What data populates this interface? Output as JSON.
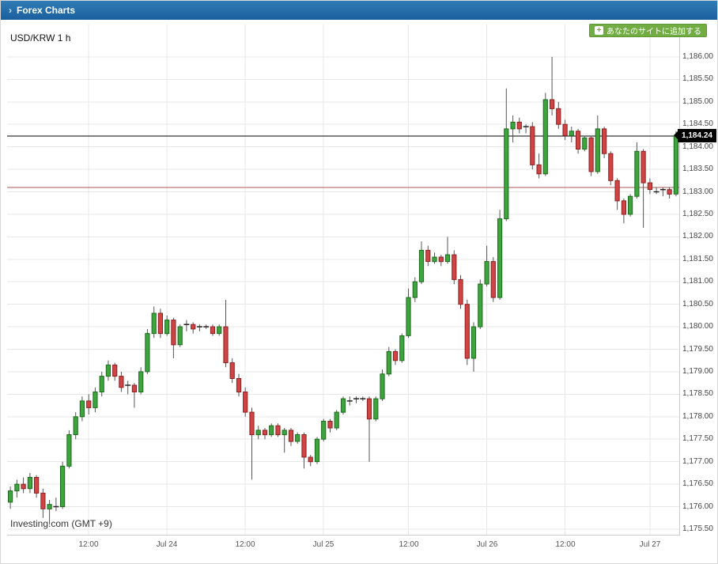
{
  "header": {
    "chevron": "›",
    "title": "Forex Charts"
  },
  "add_button": {
    "plus": "+",
    "label": "あなたのサイトに追加する",
    "bg": "#72ad44"
  },
  "chart": {
    "symbol_label": "USD/KRW 1 h",
    "watermark": "Investing.com (GMT +9)",
    "last_price_label": "1,184.24"
  },
  "chart_data": {
    "type": "candlestick",
    "title": "USD/KRW 1 h",
    "pair": "USD/KRW",
    "timeframe": "1h",
    "timezone": "GMT +9",
    "ylim": [
      1175.5,
      1186.0
    ],
    "grid": true,
    "last_price": 1184.24,
    "reference_line": 1183.1,
    "colors": {
      "up": "#3ea43e",
      "up_border": "#1c6b1c",
      "down": "#cf4444",
      "down_border": "#8e2020",
      "grid": "#e7e7e7",
      "wick": "#555555",
      "last_price_line": "#000000",
      "reference_line_color": "#aa5555",
      "accent_header": "#1a5f9e",
      "accent_button": "#72ad44"
    },
    "y_ticks": [
      "1,186.00",
      "1,185.50",
      "1,185.00",
      "1,184.50",
      "1,184.00",
      "1,183.50",
      "1,183.00",
      "1,182.50",
      "1,182.00",
      "1,181.50",
      "1,181.00",
      "1,180.50",
      "1,180.00",
      "1,179.50",
      "1,179.00",
      "1,178.50",
      "1,178.00",
      "1,177.50",
      "1,177.00",
      "1,176.50",
      "1,176.00",
      "1,175.50"
    ],
    "x_ticks": [
      {
        "index": 12,
        "label": "12:00"
      },
      {
        "index": 24,
        "label": "Jul 24"
      },
      {
        "index": 36,
        "label": "12:00"
      },
      {
        "index": 48,
        "label": "Jul 25"
      },
      {
        "index": 61,
        "label": "12:00"
      },
      {
        "index": 73,
        "label": "Jul 26"
      },
      {
        "index": 85,
        "label": "12:00"
      },
      {
        "index": 98,
        "label": "Jul 27"
      }
    ],
    "candles": [
      [
        1176.1,
        1176.45,
        1175.95,
        1176.35
      ],
      [
        1176.35,
        1176.6,
        1176.2,
        1176.5
      ],
      [
        1176.5,
        1176.65,
        1176.3,
        1176.4
      ],
      [
        1176.4,
        1176.75,
        1176.3,
        1176.65
      ],
      [
        1176.65,
        1176.7,
        1176.2,
        1176.3
      ],
      [
        1176.3,
        1176.4,
        1175.75,
        1175.95
      ],
      [
        1175.95,
        1176.15,
        1175.6,
        1176.05
      ],
      [
        1176.05,
        1176.2,
        1175.9,
        1176.0
      ],
      [
        1176.0,
        1177.0,
        1175.95,
        1176.9
      ],
      [
        1176.9,
        1177.7,
        1176.85,
        1177.6
      ],
      [
        1177.6,
        1178.1,
        1177.5,
        1178.0
      ],
      [
        1178.0,
        1178.45,
        1177.9,
        1178.35
      ],
      [
        1178.35,
        1178.5,
        1178.05,
        1178.2
      ],
      [
        1178.2,
        1178.65,
        1178.1,
        1178.55
      ],
      [
        1178.55,
        1179.0,
        1178.45,
        1178.9
      ],
      [
        1178.9,
        1179.25,
        1178.8,
        1179.15
      ],
      [
        1179.15,
        1179.2,
        1178.8,
        1178.9
      ],
      [
        1178.9,
        1179.0,
        1178.55,
        1178.65
      ],
      [
        1178.65,
        1178.8,
        1178.5,
        1178.7
      ],
      [
        1178.7,
        1178.75,
        1178.2,
        1178.55
      ],
      [
        1178.55,
        1179.1,
        1178.5,
        1179.0
      ],
      [
        1179.0,
        1179.95,
        1178.95,
        1179.85
      ],
      [
        1179.85,
        1180.45,
        1179.75,
        1180.3
      ],
      [
        1180.3,
        1180.4,
        1179.75,
        1179.85
      ],
      [
        1179.85,
        1180.25,
        1179.8,
        1180.15
      ],
      [
        1180.15,
        1180.2,
        1179.3,
        1179.6
      ],
      [
        1179.6,
        1180.05,
        1179.55,
        1180.0
      ],
      [
        1180.0,
        1180.15,
        1179.9,
        1180.05
      ],
      [
        1180.05,
        1180.1,
        1179.85,
        1179.95
      ],
      [
        1179.95,
        1180.05,
        1179.9,
        1180.0
      ],
      [
        1180.0,
        1180.05,
        1179.95,
        1180.0
      ],
      [
        1180.0,
        1180.05,
        1179.8,
        1179.85
      ],
      [
        1179.85,
        1180.05,
        1179.8,
        1180.0
      ],
      [
        1180.0,
        1180.6,
        1179.1,
        1179.2
      ],
      [
        1179.2,
        1179.3,
        1178.75,
        1178.85
      ],
      [
        1178.85,
        1178.95,
        1178.45,
        1178.55
      ],
      [
        1178.55,
        1178.65,
        1178.0,
        1178.1
      ],
      [
        1178.1,
        1178.2,
        1176.6,
        1177.6
      ],
      [
        1177.6,
        1177.8,
        1177.5,
        1177.7
      ],
      [
        1177.7,
        1177.75,
        1177.5,
        1177.6
      ],
      [
        1177.6,
        1177.85,
        1177.55,
        1177.8
      ],
      [
        1177.8,
        1177.85,
        1177.55,
        1177.6
      ],
      [
        1177.6,
        1177.75,
        1177.2,
        1177.7
      ],
      [
        1177.7,
        1177.75,
        1177.35,
        1177.45
      ],
      [
        1177.45,
        1177.65,
        1177.4,
        1177.6
      ],
      [
        1177.6,
        1177.65,
        1176.85,
        1177.1
      ],
      [
        1177.1,
        1177.15,
        1176.9,
        1177.0
      ],
      [
        1177.0,
        1177.55,
        1176.95,
        1177.5
      ],
      [
        1177.5,
        1177.95,
        1177.45,
        1177.9
      ],
      [
        1177.9,
        1177.95,
        1177.65,
        1177.75
      ],
      [
        1177.75,
        1178.15,
        1177.7,
        1178.1
      ],
      [
        1178.1,
        1178.45,
        1178.05,
        1178.4
      ],
      [
        1178.4,
        1178.45,
        1178.25,
        1178.35
      ],
      [
        1178.35,
        1178.45,
        1178.3,
        1178.4
      ],
      [
        1178.4,
        1178.45,
        1178.35,
        1178.4
      ],
      [
        1178.4,
        1178.45,
        1177.0,
        1177.95
      ],
      [
        1177.95,
        1178.45,
        1177.9,
        1178.4
      ],
      [
        1178.4,
        1179.05,
        1178.35,
        1178.95
      ],
      [
        1178.95,
        1179.55,
        1178.9,
        1179.45
      ],
      [
        1179.45,
        1179.5,
        1179.15,
        1179.25
      ],
      [
        1179.25,
        1179.85,
        1179.2,
        1179.8
      ],
      [
        1179.8,
        1180.85,
        1179.75,
        1180.65
      ],
      [
        1180.65,
        1181.1,
        1180.55,
        1181.0
      ],
      [
        1181.0,
        1181.9,
        1180.95,
        1181.7
      ],
      [
        1181.7,
        1181.8,
        1181.35,
        1181.45
      ],
      [
        1181.45,
        1181.65,
        1181.4,
        1181.55
      ],
      [
        1181.55,
        1181.6,
        1181.35,
        1181.45
      ],
      [
        1181.45,
        1182.0,
        1181.4,
        1181.6
      ],
      [
        1181.6,
        1181.7,
        1180.95,
        1181.05
      ],
      [
        1181.05,
        1181.15,
        1180.4,
        1180.5
      ],
      [
        1180.5,
        1180.6,
        1179.15,
        1179.3
      ],
      [
        1179.3,
        1180.1,
        1179.0,
        1180.0
      ],
      [
        1180.0,
        1181.05,
        1179.95,
        1180.95
      ],
      [
        1180.95,
        1181.8,
        1180.9,
        1181.45
      ],
      [
        1181.45,
        1181.55,
        1180.55,
        1180.65
      ],
      [
        1180.65,
        1182.6,
        1180.6,
        1182.4
      ],
      [
        1182.4,
        1185.3,
        1182.35,
        1184.4
      ],
      [
        1184.4,
        1184.7,
        1184.1,
        1184.55
      ],
      [
        1184.55,
        1184.65,
        1184.3,
        1184.4
      ],
      [
        1184.4,
        1184.5,
        1184.3,
        1184.45
      ],
      [
        1184.45,
        1184.55,
        1183.5,
        1183.6
      ],
      [
        1183.6,
        1183.85,
        1183.3,
        1183.4
      ],
      [
        1183.4,
        1185.2,
        1183.35,
        1185.05
      ],
      [
        1185.05,
        1186.0,
        1184.7,
        1184.85
      ],
      [
        1184.85,
        1185.0,
        1184.4,
        1184.5
      ],
      [
        1184.5,
        1184.6,
        1184.15,
        1184.25
      ],
      [
        1184.25,
        1184.45,
        1184.1,
        1184.35
      ],
      [
        1184.35,
        1184.4,
        1183.85,
        1183.95
      ],
      [
        1183.95,
        1184.25,
        1183.9,
        1184.2
      ],
      [
        1184.2,
        1184.25,
        1183.35,
        1183.45
      ],
      [
        1183.45,
        1184.7,
        1183.4,
        1184.4
      ],
      [
        1184.4,
        1184.45,
        1183.75,
        1183.85
      ],
      [
        1183.85,
        1183.9,
        1183.15,
        1183.25
      ],
      [
        1183.25,
        1183.3,
        1182.6,
        1182.8
      ],
      [
        1182.8,
        1182.85,
        1182.3,
        1182.5
      ],
      [
        1182.5,
        1182.95,
        1182.45,
        1182.9
      ],
      [
        1182.9,
        1184.1,
        1182.85,
        1183.9
      ],
      [
        1183.9,
        1183.95,
        1182.2,
        1183.2
      ],
      [
        1183.2,
        1183.3,
        1182.95,
        1183.05
      ],
      [
        1183.05,
        1183.1,
        1182.95,
        1183.0
      ],
      [
        1183.0,
        1183.1,
        1182.9,
        1183.05
      ],
      [
        1183.05,
        1183.1,
        1182.85,
        1182.95
      ],
      [
        1182.95,
        1184.35,
        1182.9,
        1184.24
      ]
    ]
  }
}
